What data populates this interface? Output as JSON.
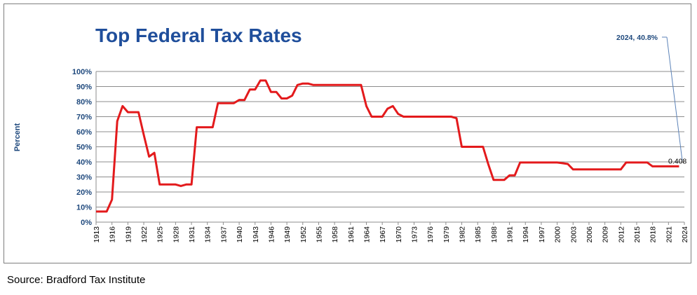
{
  "chart_data": {
    "type": "line",
    "title": "Top Federal Tax Rates",
    "xlabel": "",
    "ylabel": "Percent",
    "ylim": [
      0,
      1
    ],
    "xlim": [
      1913,
      2024
    ],
    "y_ticks": [
      0,
      0.1,
      0.2,
      0.3,
      0.4,
      0.5,
      0.6,
      0.7,
      0.8,
      0.9,
      1.0
    ],
    "y_tick_labels": [
      "0%",
      "10%",
      "20%",
      "30%",
      "40%",
      "50%",
      "60%",
      "70%",
      "80%",
      "90%",
      "100%"
    ],
    "x_tick_labels": [
      "1913",
      "1916",
      "1919",
      "1922",
      "1925",
      "1928",
      "1931",
      "1934",
      "1937",
      "1940",
      "1943",
      "1946",
      "1949",
      "1952",
      "1955",
      "1958",
      "1961",
      "1964",
      "1967",
      "1970",
      "1973",
      "1976",
      "1979",
      "1982",
      "1985",
      "1988",
      "1991",
      "1994",
      "1997",
      "2000",
      "2003",
      "2006",
      "2009",
      "2012",
      "2015",
      "2018",
      "2021",
      "2024"
    ],
    "grid": true,
    "legend": "none",
    "colors": {
      "line": "#e31a1c",
      "title": "#1f4e9b",
      "axis_text": "#1f497d",
      "callout": "#5b82b8"
    },
    "series": [
      {
        "name": "Top Federal Tax Rate",
        "x": [
          1913,
          1914,
          1915,
          1916,
          1917,
          1918,
          1919,
          1920,
          1921,
          1922,
          1923,
          1924,
          1925,
          1926,
          1927,
          1928,
          1929,
          1930,
          1931,
          1932,
          1933,
          1934,
          1935,
          1936,
          1937,
          1938,
          1939,
          1940,
          1941,
          1942,
          1943,
          1944,
          1945,
          1946,
          1947,
          1948,
          1949,
          1950,
          1951,
          1952,
          1953,
          1954,
          1955,
          1956,
          1957,
          1958,
          1959,
          1960,
          1961,
          1962,
          1963,
          1964,
          1965,
          1966,
          1967,
          1968,
          1969,
          1970,
          1971,
          1972,
          1973,
          1974,
          1975,
          1976,
          1977,
          1978,
          1979,
          1980,
          1981,
          1982,
          1983,
          1984,
          1985,
          1986,
          1987,
          1988,
          1989,
          1990,
          1991,
          1992,
          1993,
          1994,
          1995,
          1996,
          1997,
          1998,
          1999,
          2000,
          2001,
          2002,
          2003,
          2004,
          2005,
          2006,
          2007,
          2008,
          2009,
          2010,
          2011,
          2012,
          2013,
          2014,
          2015,
          2016,
          2017,
          2018,
          2019,
          2020,
          2021,
          2022,
          2023
        ],
        "values": [
          0.07,
          0.07,
          0.07,
          0.15,
          0.67,
          0.77,
          0.73,
          0.73,
          0.73,
          0.58,
          0.435,
          0.46,
          0.25,
          0.25,
          0.25,
          0.25,
          0.24,
          0.25,
          0.25,
          0.63,
          0.63,
          0.63,
          0.63,
          0.79,
          0.79,
          0.79,
          0.79,
          0.811,
          0.81,
          0.88,
          0.88,
          0.94,
          0.94,
          0.864,
          0.864,
          0.821,
          0.821,
          0.84,
          0.91,
          0.92,
          0.92,
          0.91,
          0.91,
          0.91,
          0.91,
          0.91,
          0.91,
          0.91,
          0.91,
          0.91,
          0.91,
          0.77,
          0.7,
          0.7,
          0.7,
          0.753,
          0.77,
          0.718,
          0.7,
          0.7,
          0.7,
          0.7,
          0.7,
          0.7,
          0.7,
          0.7,
          0.7,
          0.7,
          0.69,
          0.5,
          0.5,
          0.5,
          0.5,
          0.5,
          0.385,
          0.28,
          0.28,
          0.28,
          0.31,
          0.31,
          0.396,
          0.396,
          0.396,
          0.396,
          0.396,
          0.396,
          0.396,
          0.396,
          0.391,
          0.386,
          0.35,
          0.35,
          0.35,
          0.35,
          0.35,
          0.35,
          0.35,
          0.35,
          0.35,
          0.35,
          0.396,
          0.396,
          0.396,
          0.396,
          0.396,
          0.37,
          0.37,
          0.37,
          0.37,
          0.37,
          0.37
        ]
      }
    ],
    "annotations": [
      {
        "text": "2024, 40.8%",
        "target_x": 2024,
        "target_y": 0.408
      },
      {
        "text": "0.408",
        "target_x": 2024,
        "target_y": 0.408
      }
    ]
  },
  "source": "Source: Bradford Tax Institute"
}
